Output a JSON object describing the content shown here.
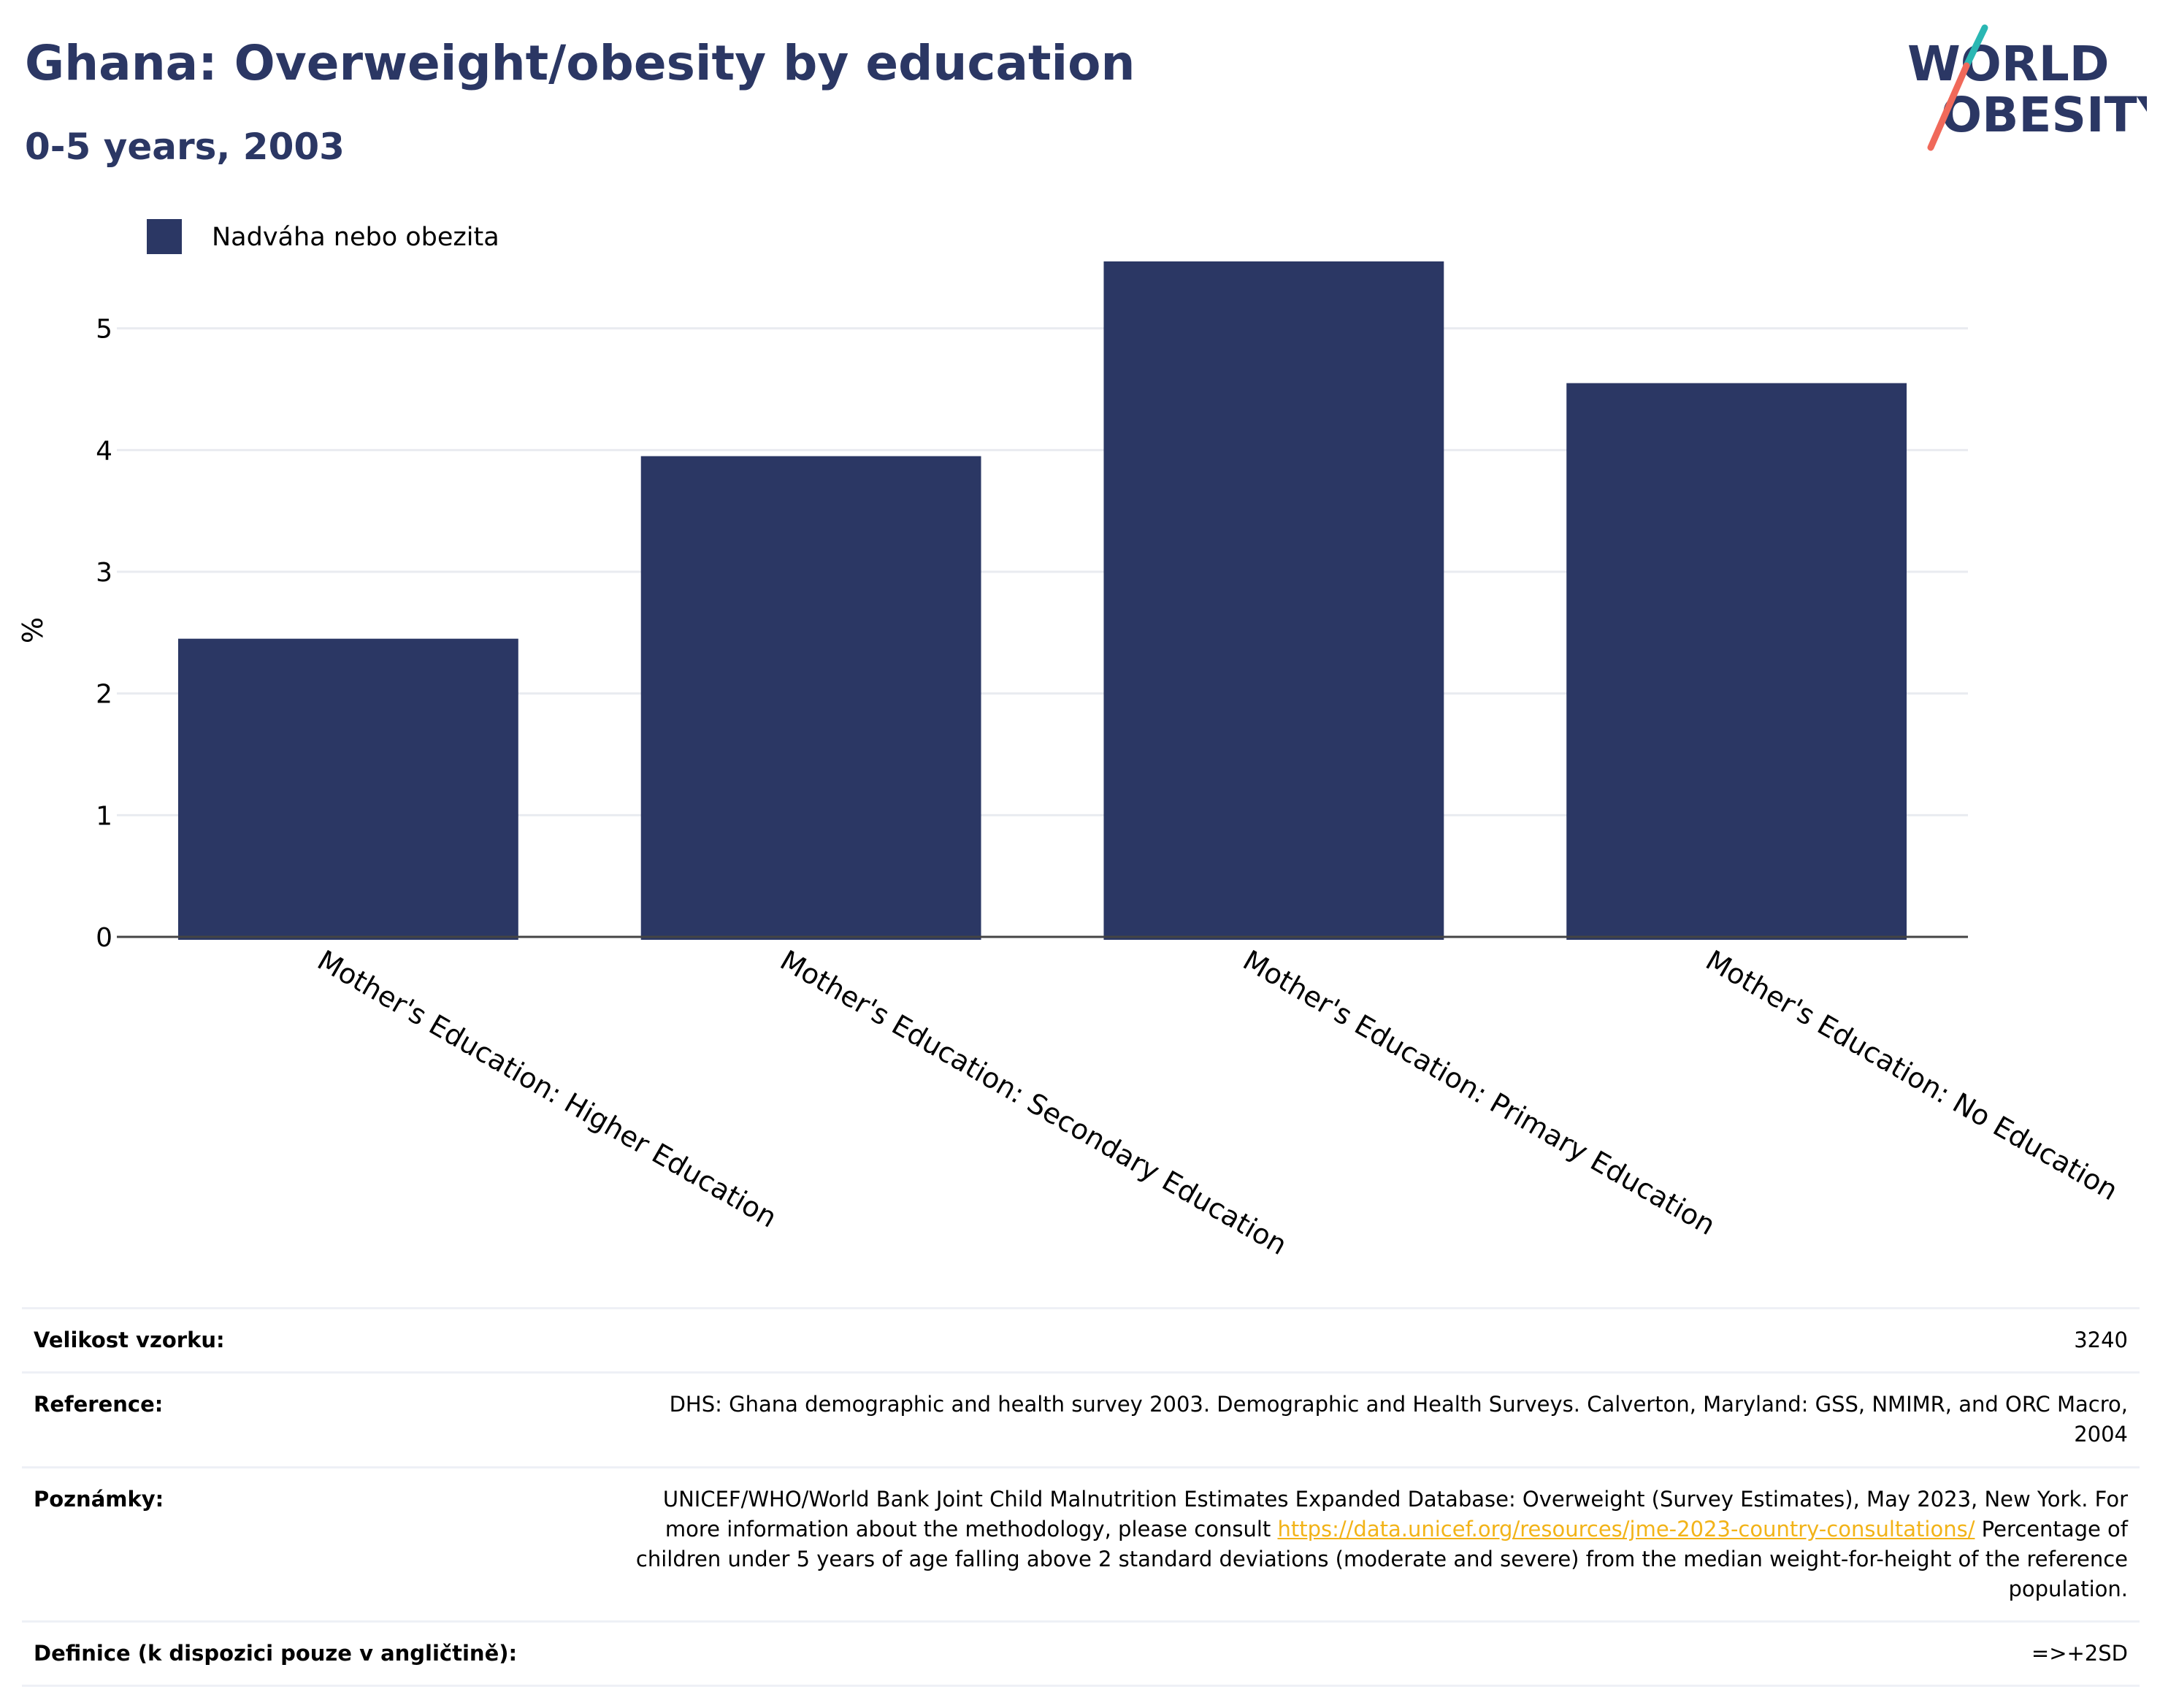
{
  "title": "Ghana: Overweight/obesity by education",
  "subtitle": "0-5 years, 2003",
  "logo": {
    "line1": "WORLD",
    "line2": "OBESITY"
  },
  "colors": {
    "bar": "#2b3764",
    "title": "#2b3764",
    "link": "#f2b318",
    "logo_teal": "#2ab7b3",
    "logo_coral": "#f0695a"
  },
  "chart_data": {
    "type": "bar",
    "categories": [
      "Mother's Education: Higher Education",
      "Mother's Education: Secondary Education",
      "Mother's Education: Primary Education",
      "Mother's Education: No Education"
    ],
    "series": [
      {
        "name": "Nadváha nebo obezita",
        "values": [
          2.45,
          3.95,
          5.55,
          4.55
        ]
      }
    ],
    "ylabel": "%",
    "xlabel": "",
    "ylim": [
      0,
      6
    ],
    "yticks": [
      0,
      1,
      2,
      3,
      4,
      5
    ],
    "grid": true,
    "legend": "top-left"
  },
  "info": [
    {
      "label": "Velikost vzorku:",
      "value": "3240"
    },
    {
      "label": "Reference:",
      "value": "DHS: Ghana demographic and health survey 2003. Demographic and Health Surveys. Calverton, Maryland: GSS, NMIMR, and ORC Macro, 2004"
    },
    {
      "label": "Poznámky:",
      "value_before": "UNICEF/WHO/World Bank Joint Child Malnutrition Estimates Expanded Database: Overweight (Survey Estimates), May 2023, New York. For more information about the methodology, please consult ",
      "link": "https://data.unicef.org/resources/jme-2023-country-consultations/",
      "value_after": " Percentage of children under 5 years of age falling above 2 standard deviations (moderate and severe) from the median weight-for-height of the reference population."
    },
    {
      "label": "Definice (k dispozici pouze v angličtině):",
      "value": "=>+2SD"
    }
  ]
}
